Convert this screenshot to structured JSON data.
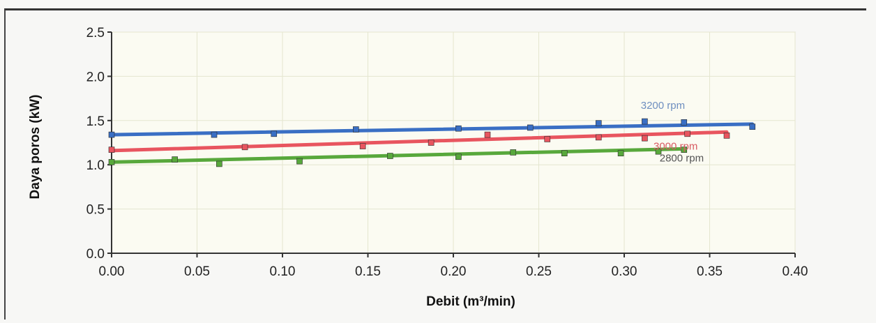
{
  "chart_data": {
    "type": "scatter",
    "title": "",
    "xlabel": "Debit (m³/min)",
    "ylabel": "Daya poros (kW)",
    "xlim": [
      0.0,
      0.4
    ],
    "ylim": [
      0.0,
      2.5
    ],
    "x_ticks": [
      "0.00",
      "0.05",
      "0.10",
      "0.15",
      "0.20",
      "0.25",
      "0.30",
      "0.35",
      "0.40"
    ],
    "y_ticks": [
      "0.0",
      "0.5",
      "1.0",
      "1.5",
      "2.0",
      "2.5"
    ],
    "grid": true,
    "legend": "none",
    "series": [
      {
        "name": "3200 rpm",
        "color": "#3a6fc4",
        "x": [
          0.0,
          0.06,
          0.095,
          0.143,
          0.203,
          0.245,
          0.285,
          0.312,
          0.335,
          0.375
        ],
        "y": [
          1.34,
          1.34,
          1.35,
          1.4,
          1.41,
          1.42,
          1.47,
          1.49,
          1.48,
          1.43
        ],
        "trend": [
          [
            0.0,
            1.34
          ],
          [
            0.375,
            1.46
          ]
        ]
      },
      {
        "name": "3000 rpm",
        "color": "#e8555f",
        "x": [
          0.0,
          0.078,
          0.147,
          0.187,
          0.22,
          0.255,
          0.285,
          0.312,
          0.337,
          0.36
        ],
        "y": [
          1.17,
          1.2,
          1.21,
          1.25,
          1.34,
          1.29,
          1.31,
          1.3,
          1.35,
          1.33
        ],
        "trend": [
          [
            0.0,
            1.16
          ],
          [
            0.36,
            1.37
          ]
        ]
      },
      {
        "name": "2800 rpm",
        "color": "#58a83c",
        "x": [
          0.0,
          0.037,
          0.063,
          0.11,
          0.163,
          0.203,
          0.235,
          0.265,
          0.298,
          0.32,
          0.335
        ],
        "y": [
          1.03,
          1.06,
          1.01,
          1.04,
          1.1,
          1.09,
          1.14,
          1.13,
          1.13,
          1.15,
          1.17
        ],
        "trend": [
          [
            0.0,
            1.03
          ],
          [
            0.335,
            1.18
          ]
        ]
      }
    ]
  },
  "series_label_colors": {
    "3200 rpm": "#6f8fc0",
    "3000 rpm": "#d85b62",
    "2800 rpm": "#555555"
  }
}
